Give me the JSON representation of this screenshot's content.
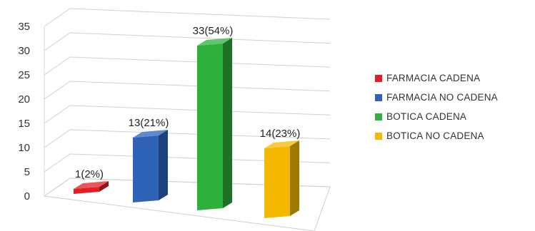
{
  "chart_data": {
    "type": "bar",
    "categories": [
      "FARMACIA CADENA",
      "FARMACIA NO CADENA",
      "BOTICA CADENA",
      "BOTICA NO CADENA"
    ],
    "values": [
      1,
      13,
      33,
      14
    ],
    "data_labels": [
      "1(2%)",
      "13(21%)",
      "33(54%)",
      "14(23%)"
    ],
    "colors": [
      "#e31e24",
      "#2e63b8",
      "#2eb03c",
      "#f5b800"
    ],
    "title": "",
    "xlabel": "",
    "ylabel": "",
    "ylim": [
      0,
      35
    ],
    "yticks": [
      0,
      5,
      10,
      15,
      20,
      25,
      30,
      35
    ],
    "grid": true,
    "style": "3d",
    "legend": {
      "position": "right",
      "entries": [
        "FARMACIA CADENA",
        "FARMACIA NO CADENA",
        "BOTICA CADENA",
        "BOTICA NO CADENA"
      ]
    }
  }
}
